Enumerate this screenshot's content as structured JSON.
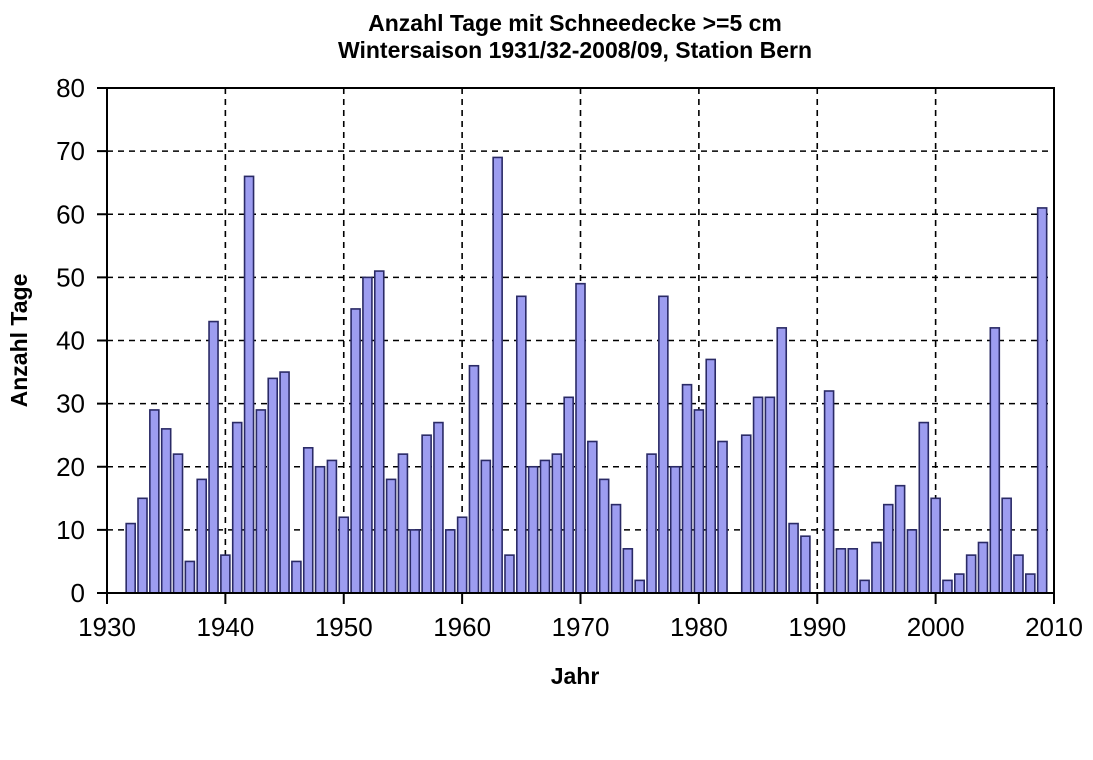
{
  "chart_data": {
    "type": "bar",
    "title": "Anzahl Tage mit Schneedecke >=5 cm",
    "subtitle": "Wintersaison 1931/32-2008/09, Station Bern",
    "xlabel": "Jahr",
    "ylabel": "Anzahl Tage",
    "xlim": [
      1930,
      2010
    ],
    "ylim": [
      0,
      80
    ],
    "x_ticks": [
      1930,
      1940,
      1950,
      1960,
      1970,
      1980,
      1990,
      2000,
      2010
    ],
    "y_ticks": [
      0,
      10,
      20,
      30,
      40,
      50,
      60,
      70,
      80
    ],
    "grid": "dashed-both-axes",
    "legend": "none",
    "bar_color": "#9d9df0",
    "bar_border_color": "#2a2a66",
    "axis_color": "#000000",
    "background_color": "#ffffff",
    "years": [
      1932,
      1933,
      1934,
      1935,
      1936,
      1937,
      1938,
      1939,
      1940,
      1941,
      1942,
      1943,
      1944,
      1945,
      1946,
      1947,
      1948,
      1949,
      1950,
      1951,
      1952,
      1953,
      1954,
      1955,
      1956,
      1957,
      1958,
      1959,
      1960,
      1961,
      1962,
      1963,
      1964,
      1965,
      1966,
      1967,
      1968,
      1969,
      1970,
      1971,
      1972,
      1973,
      1974,
      1975,
      1976,
      1977,
      1978,
      1979,
      1980,
      1981,
      1982,
      1983,
      1984,
      1985,
      1986,
      1987,
      1988,
      1989,
      1990,
      1991,
      1992,
      1993,
      1994,
      1995,
      1996,
      1997,
      1998,
      1999,
      2000,
      2001,
      2002,
      2003,
      2004,
      2005,
      2006,
      2007,
      2008,
      2009
    ],
    "values": [
      11,
      15,
      29,
      26,
      22,
      5,
      18,
      43,
      6,
      27,
      66,
      29,
      34,
      35,
      5,
      23,
      20,
      21,
      12,
      45,
      50,
      51,
      18,
      22,
      10,
      25,
      27,
      10,
      12,
      36,
      21,
      69,
      6,
      47,
      20,
      21,
      22,
      31,
      49,
      24,
      18,
      14,
      7,
      2,
      22,
      47,
      20,
      33,
      29,
      37,
      24,
      0,
      25,
      31,
      31,
      42,
      11,
      9,
      0,
      32,
      7,
      7,
      2,
      8,
      14,
      17,
      10,
      27,
      15,
      2,
      3,
      6,
      8,
      42,
      15,
      6,
      3,
      61
    ]
  }
}
